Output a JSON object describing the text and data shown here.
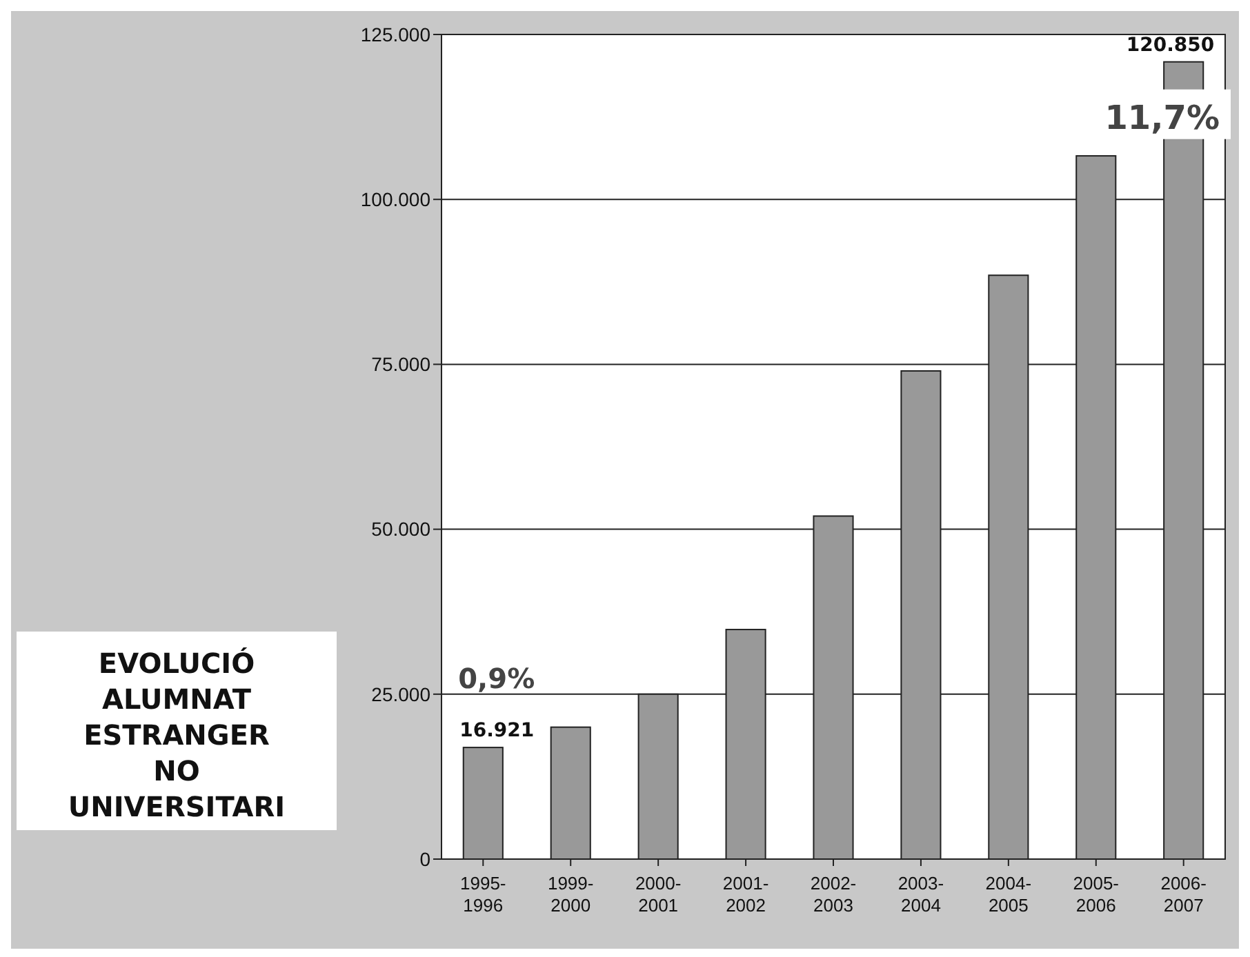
{
  "chart_data": {
    "type": "bar",
    "title": "EVOLUCIÓ ALUMNAT ESTRANGER NO UNIVERSITARI",
    "categories": [
      "1995-1996",
      "1999-2000",
      "2000-2001",
      "2001-2002",
      "2002-2003",
      "2003-2004",
      "2004-2005",
      "2005-2006",
      "2006-2007"
    ],
    "values": [
      16921,
      20000,
      25000,
      34800,
      52000,
      74000,
      88500,
      106600,
      120850
    ],
    "value_labels": [
      "16.921",
      null,
      null,
      null,
      null,
      null,
      null,
      null,
      "120.850"
    ],
    "color": "#999999",
    "ylim": [
      0,
      125000
    ],
    "yticks": [
      {
        "value": 0,
        "label": "0"
      },
      {
        "value": 25000,
        "label": "25.000"
      },
      {
        "value": 50000,
        "label": "50.000"
      },
      {
        "value": 75000,
        "label": "75.000"
      },
      {
        "value": 100000,
        "label": "100.000"
      },
      {
        "value": 125000,
        "label": "125.000"
      }
    ],
    "grid": "y",
    "annotations": [
      "0,9%",
      "11,7%"
    ]
  }
}
